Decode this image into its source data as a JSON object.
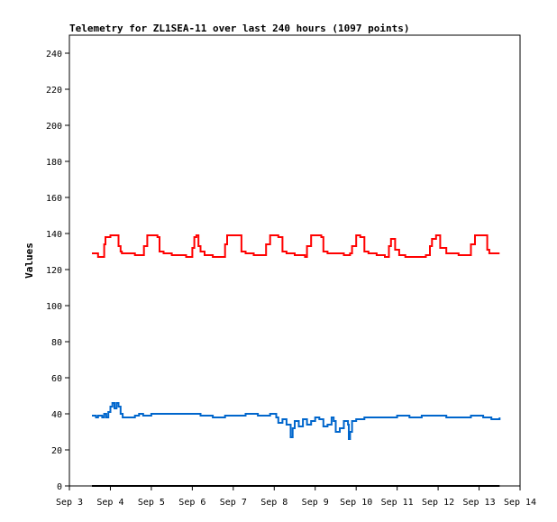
{
  "chart_data": {
    "type": "line",
    "title": "Telemetry for ZL1SEA-11 over last 240 hours (1097 points)",
    "xlabel": "",
    "ylabel": "Values",
    "xlim": [
      3.0,
      14.0
    ],
    "ylim": [
      0,
      250
    ],
    "x_ticks": [
      {
        "x": 3,
        "label": "Sep 3"
      },
      {
        "x": 4,
        "label": "Sep 4"
      },
      {
        "x": 5,
        "label": "Sep 5"
      },
      {
        "x": 6,
        "label": "Sep 6"
      },
      {
        "x": 7,
        "label": "Sep 7"
      },
      {
        "x": 8,
        "label": "Sep 8"
      },
      {
        "x": 9,
        "label": "Sep 9"
      },
      {
        "x": 10,
        "label": "Sep 10"
      },
      {
        "x": 11,
        "label": "Sep 11"
      },
      {
        "x": 12,
        "label": "Sep 12"
      },
      {
        "x": 13,
        "label": "Sep 13"
      },
      {
        "x": 14,
        "label": "Sep 14"
      }
    ],
    "y_ticks": [
      0,
      20,
      40,
      60,
      80,
      100,
      120,
      140,
      160,
      180,
      200,
      220,
      240
    ],
    "grid": false,
    "series": [
      {
        "color": "#ff0000",
        "x": [
          3.55,
          3.7,
          3.78,
          3.85,
          3.88,
          4.0,
          4.1,
          4.2,
          4.25,
          4.28,
          4.4,
          4.6,
          4.8,
          4.82,
          4.9,
          5.0,
          5.15,
          5.2,
          5.3,
          5.5,
          5.7,
          5.85,
          5.9,
          6.0,
          6.05,
          6.1,
          6.15,
          6.2,
          6.3,
          6.5,
          6.7,
          6.8,
          6.85,
          6.95,
          7.05,
          7.2,
          7.3,
          7.5,
          7.75,
          7.8,
          7.9,
          8.0,
          8.1,
          8.2,
          8.3,
          8.5,
          8.75,
          8.8,
          8.9,
          9.0,
          9.15,
          9.2,
          9.3,
          9.5,
          9.7,
          9.85,
          9.9,
          10.0,
          10.1,
          10.2,
          10.3,
          10.5,
          10.7,
          10.8,
          10.85,
          10.95,
          11.05,
          11.2,
          11.3,
          11.5,
          11.7,
          11.8,
          11.85,
          11.95,
          12.05,
          12.2,
          12.3,
          12.5,
          12.75,
          12.8,
          12.9,
          13.0,
          13.1,
          13.2,
          13.25,
          13.3,
          13.5
        ],
        "values": [
          129,
          127,
          127,
          134,
          138,
          139,
          139,
          133,
          130,
          129,
          129,
          128,
          128,
          133,
          139,
          139,
          138,
          130,
          129,
          128,
          128,
          127,
          127,
          132,
          138,
          139,
          133,
          130,
          128,
          127,
          127,
          134,
          139,
          139,
          139,
          130,
          129,
          128,
          128,
          134,
          139,
          139,
          138,
          130,
          129,
          128,
          127,
          133,
          139,
          139,
          138,
          130,
          129,
          129,
          128,
          129,
          133,
          139,
          138,
          130,
          129,
          128,
          127,
          133,
          137,
          131,
          128,
          127,
          127,
          127,
          128,
          133,
          137,
          139,
          132,
          129,
          129,
          128,
          128,
          134,
          139,
          139,
          139,
          131,
          129,
          129,
          129
        ]
      },
      {
        "color": "#0066cc",
        "x": [
          3.55,
          3.65,
          3.7,
          3.8,
          3.85,
          3.9,
          3.95,
          4.0,
          4.05,
          4.1,
          4.15,
          4.2,
          4.25,
          4.3,
          4.4,
          4.6,
          4.7,
          4.8,
          5.0,
          5.2,
          5.5,
          6.0,
          6.2,
          6.5,
          6.8,
          7.0,
          7.3,
          7.6,
          7.9,
          8.0,
          8.05,
          8.1,
          8.2,
          8.3,
          8.4,
          8.45,
          8.5,
          8.6,
          8.7,
          8.8,
          8.9,
          9.0,
          9.1,
          9.2,
          9.3,
          9.4,
          9.45,
          9.5,
          9.6,
          9.7,
          9.8,
          9.82,
          9.85,
          9.9,
          10.0,
          10.2,
          10.5,
          10.8,
          11.0,
          11.3,
          11.6,
          11.9,
          12.2,
          12.5,
          12.8,
          13.1,
          13.3,
          13.5
        ],
        "values": [
          39,
          38,
          39,
          38,
          40,
          38,
          41,
          44,
          46,
          43,
          46,
          44,
          40,
          38,
          38,
          39,
          40,
          39,
          40,
          40,
          40,
          40,
          39,
          38,
          39,
          39,
          40,
          39,
          40,
          40,
          38,
          35,
          37,
          34,
          27,
          32,
          36,
          33,
          37,
          34,
          36,
          38,
          37,
          33,
          34,
          38,
          36,
          30,
          32,
          36,
          34,
          26,
          30,
          36,
          37,
          38,
          38,
          38,
          39,
          38,
          39,
          39,
          38,
          38,
          39,
          38,
          37,
          38
        ]
      },
      {
        "color": "#000000",
        "x": [
          3.55,
          13.5
        ],
        "values": [
          0,
          0
        ]
      }
    ]
  }
}
